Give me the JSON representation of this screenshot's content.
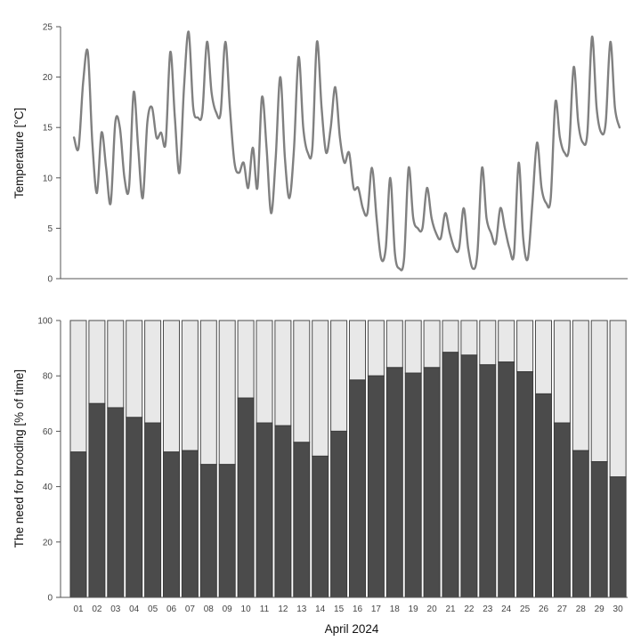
{
  "chart_data": [
    {
      "type": "line",
      "ylabel": "Temperature [°C]",
      "ylim": [
        0,
        25
      ],
      "yticks": [
        "0",
        "5",
        "10",
        "15",
        "20",
        "25"
      ],
      "grid": false,
      "colors": {
        "line": "#808080",
        "axis": "#555555"
      },
      "series": [
        {
          "x": [
            1.0,
            1.25,
            1.5,
            1.75,
            2.0,
            2.25,
            2.5,
            2.75,
            3.0,
            3.25,
            3.5,
            3.75,
            4.0,
            4.25,
            4.5,
            4.75,
            5.0,
            5.25,
            5.5,
            5.75,
            6.0,
            6.25,
            6.5,
            6.75,
            7.0,
            7.25,
            7.5,
            7.75,
            8.0,
            8.25,
            8.5,
            8.75,
            9.0,
            9.25,
            9.5,
            9.75,
            10.0,
            10.25,
            10.5,
            10.75,
            11.0,
            11.25,
            11.5,
            11.75,
            12.0,
            12.25,
            12.5,
            12.75,
            13.0,
            13.25,
            13.5,
            13.75,
            14.0,
            14.25,
            14.5,
            14.75,
            15.0,
            15.25,
            15.5,
            15.75,
            16.0,
            16.25,
            16.5,
            16.75,
            17.0,
            17.25,
            17.5,
            17.75,
            18.0,
            18.25,
            18.5,
            18.75,
            19.0,
            19.25,
            19.5,
            19.75,
            20.0,
            20.25,
            20.5,
            20.75,
            21.0,
            21.25,
            21.5,
            21.75,
            22.0,
            22.25,
            22.5,
            22.75,
            23.0,
            23.25,
            23.5,
            23.75,
            24.0,
            24.25,
            24.5,
            24.75,
            25.0,
            25.25,
            25.5,
            25.75,
            26.0,
            26.25,
            26.5,
            26.75,
            27.0,
            27.25,
            27.5,
            27.75,
            28.0,
            28.25,
            28.5,
            28.75,
            29.0,
            29.25,
            29.5,
            29.75,
            30.0,
            30.25,
            30.5,
            30.75
          ],
          "values": [
            14.0,
            13.0,
            19.5,
            22.5,
            13.5,
            8.5,
            14.5,
            11.0,
            7.5,
            15.5,
            15.0,
            10.0,
            9.0,
            18.5,
            13.0,
            8.0,
            15.5,
            17.0,
            14.0,
            14.5,
            13.5,
            22.5,
            16.0,
            10.5,
            19.0,
            24.5,
            17.0,
            16.0,
            16.5,
            23.5,
            18.5,
            16.5,
            16.5,
            23.5,
            17.0,
            11.5,
            10.5,
            11.5,
            9.0,
            13.0,
            9.0,
            18.0,
            13.0,
            6.5,
            12.0,
            20.0,
            12.0,
            8.0,
            13.0,
            22.0,
            15.0,
            12.5,
            13.0,
            23.5,
            17.0,
            12.5,
            15.0,
            19.0,
            14.0,
            11.5,
            12.5,
            9.0,
            9.0,
            7.0,
            6.5,
            11.0,
            6.0,
            2.0,
            3.0,
            10.0,
            2.5,
            1.0,
            2.0,
            11.0,
            6.0,
            5.0,
            5.0,
            9.0,
            6.0,
            4.5,
            4.0,
            6.5,
            4.5,
            3.0,
            3.0,
            7.0,
            3.0,
            1.0,
            2.5,
            11.0,
            6.0,
            4.5,
            3.5,
            7.0,
            5.0,
            3.0,
            2.5,
            11.5,
            4.0,
            2.0,
            7.5,
            13.5,
            9.0,
            7.5,
            8.0,
            17.5,
            14.0,
            12.5,
            13.0,
            21.0,
            15.5,
            13.5,
            14.5,
            24.0,
            17.0,
            14.5,
            15.5,
            23.5,
            17.0,
            15.0
          ]
        }
      ]
    },
    {
      "type": "bar",
      "stacked": true,
      "xlabel": "April 2024",
      "ylabel": "The need for brooding [% of time]",
      "ylim": [
        0,
        100
      ],
      "yticks": [
        "0",
        "20",
        "40",
        "60",
        "80",
        "100"
      ],
      "grid": false,
      "colors": {
        "dark": "#4b4b4b",
        "light": "#e8e8e8"
      },
      "categories": [
        "01",
        "02",
        "03",
        "04",
        "05",
        "06",
        "07",
        "08",
        "09",
        "10",
        "11",
        "12",
        "13",
        "14",
        "15",
        "16",
        "17",
        "18",
        "19",
        "20",
        "21",
        "22",
        "23",
        "24",
        "25",
        "26",
        "27",
        "28",
        "29",
        "30"
      ],
      "values": [
        52.5,
        70,
        68.5,
        65,
        63,
        52.5,
        53,
        48,
        48,
        72,
        63,
        62,
        56,
        51,
        60,
        78.5,
        80,
        83,
        81,
        83,
        88.5,
        87.5,
        84,
        85,
        81.5,
        73.5,
        63,
        53,
        49,
        43.5
      ]
    }
  ]
}
